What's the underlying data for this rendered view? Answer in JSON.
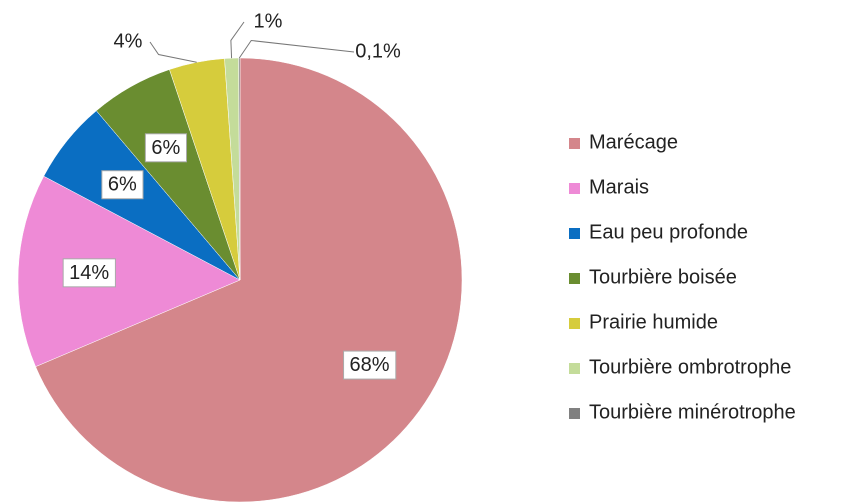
{
  "chart_data": {
    "type": "pie",
    "categories": [
      "Marécage",
      "Marais",
      "Eau peu profonde",
      "Tourbière boisée",
      "Prairie humide",
      "Tourbière ombrotrophe",
      "Tourbière minérotrophe"
    ],
    "values": [
      68,
      14,
      6,
      6,
      4,
      1,
      0.1
    ],
    "value_labels": [
      "68%",
      "14%",
      "6%",
      "6%",
      "4%",
      "1%",
      "0,1%"
    ],
    "colors": [
      "#d4868b",
      "#ee8ad6",
      "#0a6ec2",
      "#6a8d30",
      "#d6cc3c",
      "#c4dc9a",
      "#808080"
    ],
    "legend": "right"
  }
}
